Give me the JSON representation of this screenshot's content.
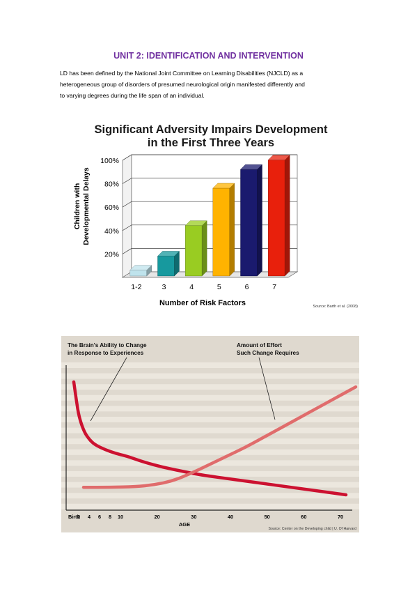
{
  "document": {
    "heading": "UNIT 2: IDENTIFICATION AND INTERVENTION",
    "paragraph_lines": [
      "LD has been defined by the National Joint Committee on Learning Disabilities (NJCLD) as a",
      "heterogeneous group of disorders of presumed neurological origin manifested differently and",
      "to varying degrees during the life span of an individual."
    ]
  },
  "chart_data": [
    {
      "type": "bar",
      "title_lines": [
        "Significant Adversity Impairs Development",
        "in the First Three Years"
      ],
      "xlabel": "Number of Risk Factors",
      "ylabel_lines": [
        "Children with",
        "Developmental Delays"
      ],
      "categories": [
        "1-2",
        "3",
        "4",
        "5",
        "6",
        "7"
      ],
      "values": [
        5,
        17,
        43,
        75,
        91,
        99
      ],
      "ylim": [
        0,
        100
      ],
      "yticks": [
        "20%",
        "40%",
        "60%",
        "80%",
        "100%"
      ],
      "bar_colors": [
        "#bfe3ec",
        "#17999e",
        "#99cc22",
        "#ffb300",
        "#1a1a6e",
        "#e8200c"
      ],
      "source": "Source: Barth et al. (2008)",
      "grid": true,
      "legend": "none"
    },
    {
      "type": "line",
      "annotations": [
        [
          "The Brain's Ability to Change",
          "in Response to Experiences"
        ],
        [
          "Amount of Effort",
          "Such Change Requires"
        ]
      ],
      "xlabel": "AGE",
      "xtick_labels": [
        "Birth",
        "2",
        "4",
        "6",
        "8",
        "10",
        "20",
        "30",
        "40",
        "50",
        "60",
        "70"
      ],
      "xtick_values": [
        0,
        2,
        4,
        6,
        8,
        10,
        20,
        30,
        40,
        50,
        60,
        70
      ],
      "xlim": [
        0,
        72
      ],
      "ylim": [
        0,
        100
      ],
      "series": [
        {
          "color": "#cc1130",
          "x": [
            0,
            0.5,
            1,
            2,
            3,
            4,
            6,
            8,
            10,
            12,
            15,
            20,
            25,
            30,
            40,
            50,
            60,
            70
          ],
          "y": [
            90,
            75,
            62,
            50,
            44,
            40,
            36,
            33,
            31,
            29,
            26,
            22,
            19,
            16,
            12,
            8,
            4,
            0
          ]
        },
        {
          "color": "#e06c6c",
          "x": [
            0,
            5,
            10,
            15,
            20,
            25,
            30,
            35,
            40,
            45,
            50,
            55,
            60,
            65,
            70
          ],
          "y": [
            6,
            6,
            6.5,
            8,
            11,
            17,
            24,
            31,
            38,
            46,
            54,
            62,
            70,
            78,
            86
          ]
        }
      ],
      "stripe_colors": [
        "#ece7de",
        "#dcd5c9"
      ],
      "background": "#dfd9cf",
      "source": "Source: Center on the Developing child | U. Of Harvard",
      "legend": "none"
    }
  ]
}
